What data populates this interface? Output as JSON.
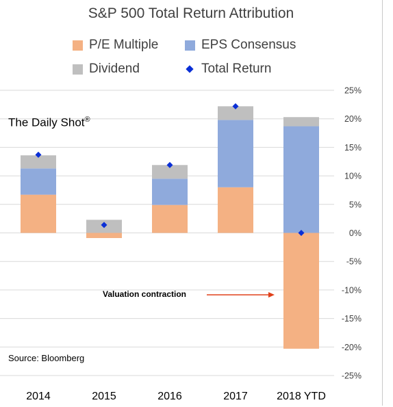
{
  "title": "S&P 500 Total Return Attribution",
  "watermark": "The Daily Shot",
  "watermark_mark": "®",
  "source": "Source: Bloomberg",
  "annotation": "Valuation contraction",
  "legend": {
    "pe": "P/E Multiple",
    "eps": "EPS Consensus",
    "div": "Dividend",
    "total": "Total Return"
  },
  "colors": {
    "pe": "#f4b183",
    "eps": "#8faadc",
    "div": "#bfbfbf",
    "total": "#0a2fd6",
    "arrow": "#e0401a"
  },
  "chart_data": {
    "type": "bar",
    "stacked": true,
    "categories": [
      "2014",
      "2015",
      "2016",
      "2017",
      "2018 YTD"
    ],
    "series": [
      {
        "name": "P/E Multiple",
        "values": [
          6.7,
          -0.9,
          4.9,
          8.0,
          -20.3
        ]
      },
      {
        "name": "EPS Consensus",
        "values": [
          4.6,
          0.0,
          4.6,
          11.8,
          18.7
        ]
      },
      {
        "name": "Dividend",
        "values": [
          2.3,
          2.3,
          2.4,
          2.4,
          1.6
        ]
      },
      {
        "name": "Total Return",
        "type": "scatter",
        "values": [
          13.7,
          1.4,
          11.9,
          22.2,
          0.0
        ]
      }
    ],
    "yticks": [
      "25%",
      "20%",
      "15%",
      "10%",
      "5%",
      "0%",
      "-5%",
      "-10%",
      "-15%",
      "-20%",
      "-25%"
    ],
    "ylim": [
      -25,
      25
    ],
    "grid": true,
    "legend_position": "top"
  }
}
